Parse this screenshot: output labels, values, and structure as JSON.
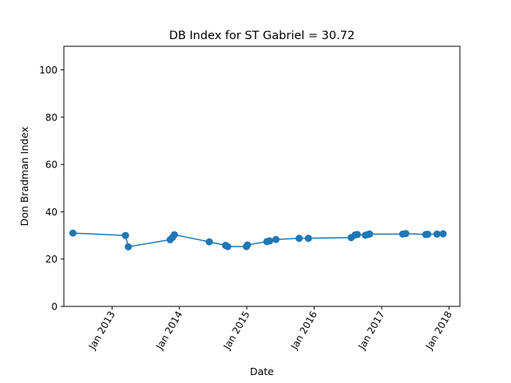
{
  "chart_data": {
    "type": "line",
    "title": "DB Index for ST Gabriel = 30.72",
    "xlabel": "Date",
    "ylabel": "Don Bradman Index",
    "ylim": [
      0,
      110
    ],
    "xlim": [
      "2012-04-15",
      "2018-03-01"
    ],
    "yticks": [
      0,
      20,
      40,
      60,
      80,
      100
    ],
    "xticks": [
      "2013-01-01",
      "2014-01-01",
      "2015-01-01",
      "2016-01-01",
      "2017-01-01",
      "2018-01-01"
    ],
    "xtick_labels": [
      "Jan 2013",
      "Jan 2014",
      "Jan 2015",
      "Jan 2016",
      "Jan 2017",
      "Jan 2018"
    ],
    "grid": false,
    "legend": "none",
    "color": "#1f77b4",
    "marker": "circle",
    "series": [
      {
        "x": [
          "2012-06-03",
          "2013-03-15",
          "2013-03-30",
          "2013-11-12",
          "2013-11-25",
          "2013-12-05",
          "2014-06-12",
          "2014-09-08",
          "2014-09-20",
          "2014-12-30",
          "2015-01-05",
          "2015-04-20",
          "2015-05-05",
          "2015-06-08",
          "2015-10-12",
          "2015-12-01",
          "2016-07-20",
          "2016-08-10",
          "2016-08-22",
          "2016-10-05",
          "2016-10-22",
          "2016-10-28",
          "2017-04-25",
          "2017-05-12",
          "2017-08-28",
          "2017-09-08",
          "2017-10-28",
          "2017-11-30"
        ],
        "y": [
          31.0,
          30.0,
          25.2,
          28.2,
          29.2,
          30.3,
          27.3,
          25.8,
          25.3,
          25.3,
          26.0,
          27.4,
          27.7,
          28.3,
          28.8,
          28.8,
          29.1,
          30.2,
          30.4,
          30.1,
          30.5,
          30.6,
          30.6,
          30.8,
          30.4,
          30.5,
          30.6,
          30.7
        ]
      }
    ]
  }
}
